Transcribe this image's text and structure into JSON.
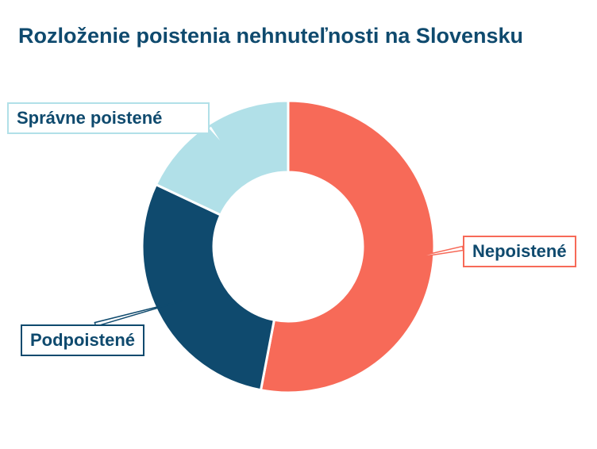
{
  "colors": {
    "title": "#0f4a6e",
    "slices": [
      "#f76a58",
      "#0f4a6e",
      "#b1e0e8"
    ]
  },
  "chart_data": {
    "type": "pie",
    "donut": true,
    "title": "Rozloženie poistenia nehnuteľnosti na Slovensku",
    "categories": [
      "Nepoistené",
      "Podpoistené",
      "Správne poistené"
    ],
    "values": [
      53,
      29,
      18
    ],
    "start_angle_deg": 0,
    "direction": "clockwise"
  }
}
